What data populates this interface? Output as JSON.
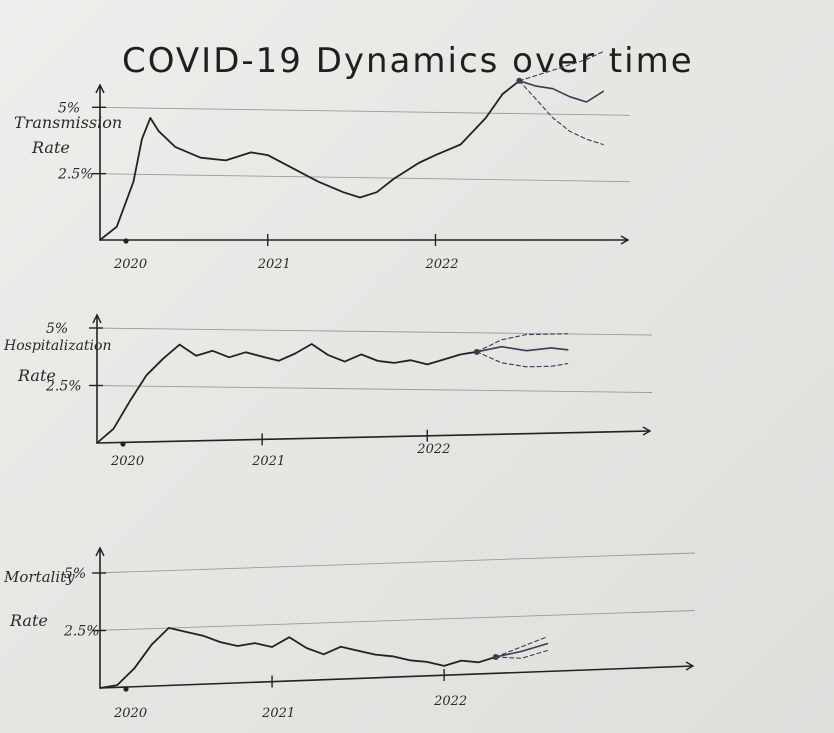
{
  "title": "COVID-19 Dynamics over time",
  "colors": {
    "ink": "#222222",
    "grid": "#9a9a9a",
    "forecast": "#3b3b55",
    "paper": "#e9e9e7"
  },
  "chart_data": [
    {
      "type": "line",
      "ylabel": "Transmission Rate",
      "ytick_labels": [
        "2.5%",
        "5%"
      ],
      "yticks": [
        2.5,
        5
      ],
      "xtick_labels": [
        "2020",
        "2021",
        "2022"
      ],
      "xticks": [
        2020,
        2021,
        2022
      ],
      "xlim": [
        2020,
        2023.1
      ],
      "ylim": [
        0,
        6.5
      ],
      "grid": true,
      "series": [
        {
          "values_x": [
            2020.0,
            2020.1,
            2020.2,
            2020.25,
            2020.3,
            2020.35,
            2020.45,
            2020.6,
            2020.75,
            2020.9,
            2021.0,
            2021.15,
            2021.3,
            2021.45,
            2021.55,
            2021.65,
            2021.75,
            2021.9,
            2022.0,
            2022.15,
            2022.3,
            2022.4,
            2022.5
          ],
          "values_y": [
            0,
            0.5,
            2.2,
            3.8,
            4.6,
            4.1,
            3.5,
            3.1,
            3.0,
            3.3,
            3.2,
            2.7,
            2.2,
            1.8,
            1.6,
            1.8,
            2.3,
            2.9,
            3.2,
            3.6,
            4.6,
            5.5,
            6.0
          ]
        },
        {
          "values_x": [
            2022.5,
            2022.6,
            2022.7,
            2022.8,
            2022.9,
            2023.0
          ],
          "values_y": [
            6.0,
            5.8,
            5.7,
            5.4,
            5.2,
            5.6
          ],
          "forecast": true
        },
        {
          "values_x": [
            2022.5,
            2022.6,
            2022.7,
            2022.8,
            2022.9,
            2023.0
          ],
          "values_y": [
            6.0,
            6.2,
            6.4,
            6.6,
            6.8,
            7.1
          ],
          "forecast": true
        },
        {
          "values_x": [
            2022.5,
            2022.6,
            2022.7,
            2022.8,
            2022.9,
            2023.0
          ],
          "values_y": [
            6.0,
            5.3,
            4.6,
            4.1,
            3.8,
            3.6
          ],
          "forecast": true
        }
      ]
    },
    {
      "type": "line",
      "ylabel": "Hospitalization Rate",
      "ytick_labels": [
        "2.5%",
        "5%"
      ],
      "yticks": [
        2.5,
        5
      ],
      "xtick_labels": [
        "2020",
        "2021",
        "2022"
      ],
      "xticks": [
        2020,
        2021,
        2022
      ],
      "xlim": [
        2020,
        2023.3
      ],
      "ylim": [
        0,
        6.5
      ],
      "grid": true,
      "series": [
        {
          "values_x": [
            2020.0,
            2020.1,
            2020.2,
            2020.3,
            2020.4,
            2020.5,
            2020.6,
            2020.7,
            2020.8,
            2020.9,
            2021.0,
            2021.1,
            2021.2,
            2021.3,
            2021.4,
            2021.5,
            2021.6,
            2021.7,
            2021.8,
            2021.9,
            2022.0,
            2022.1,
            2022.2,
            2022.3
          ],
          "values_y": [
            0,
            0.6,
            1.8,
            2.9,
            3.6,
            4.2,
            3.7,
            3.9,
            3.6,
            3.8,
            3.6,
            3.4,
            3.7,
            4.1,
            3.6,
            3.3,
            3.6,
            3.3,
            3.2,
            3.3,
            3.1,
            3.3,
            3.5,
            3.6
          ]
        },
        {
          "values_x": [
            2022.3,
            2022.45,
            2022.6,
            2022.75,
            2022.85
          ],
          "values_y": [
            3.6,
            3.8,
            3.6,
            3.7,
            3.6
          ],
          "forecast": true
        },
        {
          "values_x": [
            2022.3,
            2022.45,
            2022.6,
            2022.75,
            2022.85
          ],
          "values_y": [
            3.6,
            4.1,
            4.3,
            4.3,
            4.3
          ],
          "forecast": true
        },
        {
          "values_x": [
            2022.3,
            2022.45,
            2022.6,
            2022.75,
            2022.85
          ],
          "values_y": [
            3.6,
            3.1,
            2.9,
            2.9,
            3.0
          ],
          "forecast": true
        }
      ]
    },
    {
      "type": "line",
      "ylabel": "Mortality Rate",
      "ytick_labels": [
        "2.5%",
        "5%"
      ],
      "yticks": [
        2.5,
        5
      ],
      "xtick_labels": [
        "2020",
        "2021",
        "2022"
      ],
      "xticks": [
        2020,
        2021,
        2022
      ],
      "xlim": [
        2020,
        2023.4
      ],
      "ylim": [
        0,
        6.5
      ],
      "grid": true,
      "series": [
        {
          "values_x": [
            2020.0,
            2020.1,
            2020.2,
            2020.3,
            2020.4,
            2020.5,
            2020.6,
            2020.7,
            2020.8,
            2020.9,
            2021.0,
            2021.1,
            2021.2,
            2021.3,
            2021.4,
            2021.5,
            2021.6,
            2021.7,
            2021.8,
            2021.9,
            2022.0,
            2022.1,
            2022.2,
            2022.3
          ],
          "values_y": [
            0,
            0.1,
            0.8,
            1.8,
            2.5,
            2.3,
            2.1,
            1.8,
            1.6,
            1.7,
            1.5,
            1.9,
            1.4,
            1.1,
            1.4,
            1.2,
            1.0,
            0.9,
            0.7,
            0.6,
            0.4,
            0.6,
            0.5,
            0.7
          ]
        },
        {
          "values_x": [
            2022.3,
            2022.45,
            2022.6
          ],
          "values_y": [
            0.7,
            0.9,
            1.2
          ],
          "forecast": true
        },
        {
          "values_x": [
            2022.3,
            2022.45,
            2022.6
          ],
          "values_y": [
            0.7,
            1.1,
            1.5
          ],
          "forecast": true
        },
        {
          "values_x": [
            2022.3,
            2022.45,
            2022.6
          ],
          "values_y": [
            0.7,
            0.6,
            0.9
          ],
          "forecast": true
        }
      ]
    }
  ]
}
